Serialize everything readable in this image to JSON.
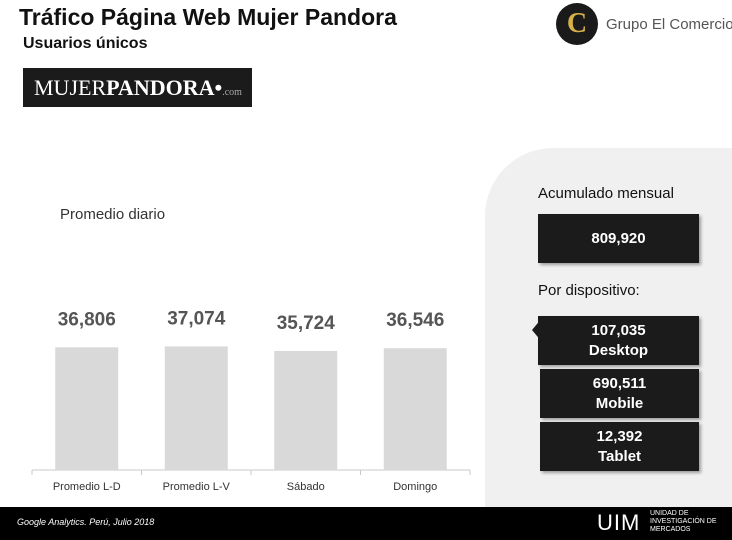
{
  "header": {
    "title": "Tráfico Página Web Mujer Pandora",
    "subtitle": "Usuarios únicos",
    "brand_logo": {
      "part1": "MUJER",
      "part2": "PANDORA",
      "dot": "•",
      "suffix": ".com"
    },
    "company_logo": {
      "emblem_letter": "C",
      "name": "Grupo El Comercio",
      "emblem_color": "#d8b04a"
    }
  },
  "chart_data": {
    "type": "bar",
    "title": "Promedio diario",
    "categories": [
      "Promedio L-D",
      "Promedio L-V",
      "Sábado",
      "Domingo"
    ],
    "values": [
      36806,
      37074,
      35724,
      36546
    ],
    "value_labels": [
      "36,806",
      "37,074",
      "35,724",
      "36,546"
    ],
    "ylim": [
      0,
      45000
    ],
    "grid": false,
    "bar_color": "#d9d9d9"
  },
  "summary": {
    "monthly_label": "Acumulado mensual",
    "monthly_value": "809,920",
    "device_label": "Por dispositivo:",
    "devices": [
      {
        "value": "107,035",
        "name": "Desktop"
      },
      {
        "value": "690,511",
        "name": "Mobile"
      },
      {
        "value": "12,392",
        "name": "Tablet"
      }
    ]
  },
  "footer": {
    "source": "Google Analytics. Perú,  Julio 2018",
    "uim": "UIM",
    "uim_full": "UNIDAD DE\nINVESTIGACIÓN DE\nMERCADOS"
  }
}
